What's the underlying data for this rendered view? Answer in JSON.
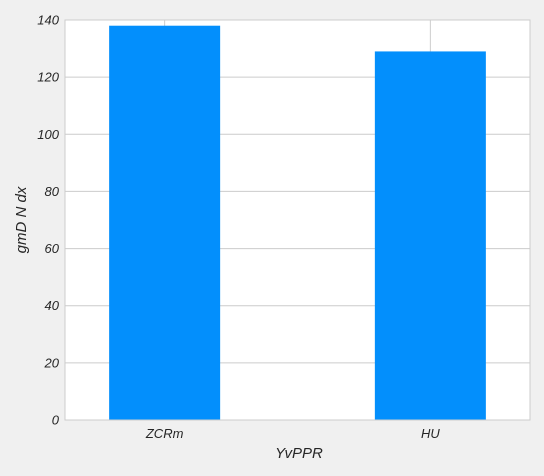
{
  "chart_data": {
    "type": "bar",
    "title": "",
    "xlabel": "YvPPR",
    "ylabel": "gmD N dx",
    "categories": [
      "ZCRm",
      "HU"
    ],
    "values": [
      138,
      129
    ],
    "ylim": [
      0,
      140
    ],
    "yticks": [
      0,
      20,
      40,
      60,
      80,
      100,
      120,
      140
    ],
    "grid": true,
    "colors": {
      "bar": "#038ffc",
      "plot_bg": "#ffffff",
      "figure_bg": "#f0f0f0",
      "grid": "#cccccc"
    }
  }
}
